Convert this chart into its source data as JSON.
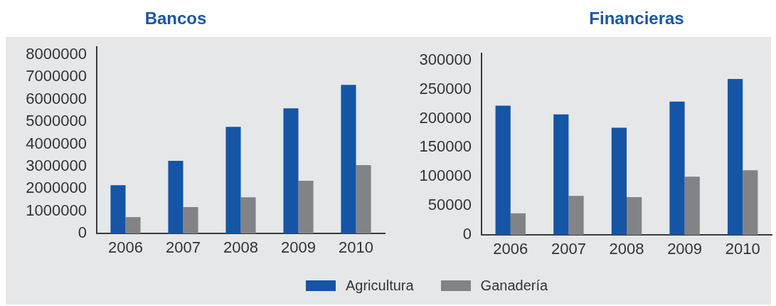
{
  "chart_data": [
    {
      "type": "bar",
      "title": "Bancos",
      "categories": [
        "2006",
        "2007",
        "2008",
        "2009",
        "2010"
      ],
      "series": [
        {
          "name": "Agricultura",
          "color": "#1555a5",
          "values": [
            2160000,
            3250000,
            4770000,
            5600000,
            6650000
          ]
        },
        {
          "name": "Ganadería",
          "color": "#828386",
          "values": [
            730000,
            1180000,
            1620000,
            2360000,
            3060000
          ]
        }
      ],
      "ylim": [
        0,
        8350000
      ],
      "yticks": [
        0,
        1000000,
        2000000,
        3000000,
        4000000,
        5000000,
        6000000,
        7000000,
        8000000
      ],
      "legend": "bottom"
    },
    {
      "type": "bar",
      "title": "Financieras",
      "categories": [
        "2006",
        "2007",
        "2008",
        "2009",
        "2010"
      ],
      "series": [
        {
          "name": "Agricultura",
          "color": "#1555a5",
          "values": [
            222000,
            207000,
            184000,
            229000,
            268000
          ]
        },
        {
          "name": "Ganadería",
          "color": "#828386",
          "values": [
            37000,
            67000,
            65000,
            100000,
            111000
          ]
        }
      ],
      "ylim": [
        0,
        312000
      ],
      "yticks": [
        0,
        50000,
        100000,
        150000,
        200000,
        250000,
        300000
      ],
      "legend": "bottom"
    }
  ]
}
